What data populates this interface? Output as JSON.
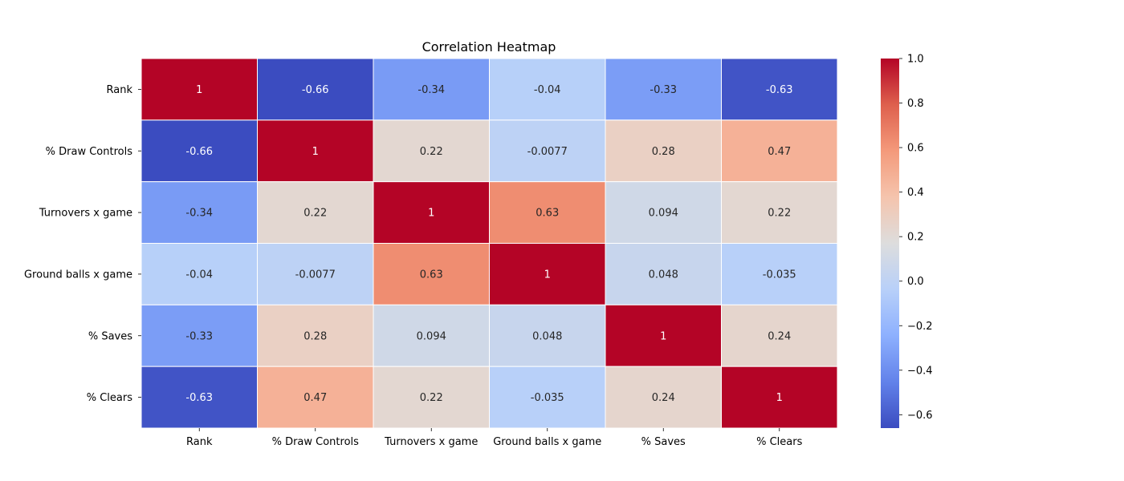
{
  "chart_data": {
    "type": "heatmap",
    "title": "Correlation Heatmap",
    "x_labels": [
      "Rank",
      "% Draw Controls",
      "Turnovers x game",
      "Ground balls x game",
      "% Saves",
      "% Clears"
    ],
    "y_labels": [
      "Rank",
      "% Draw Controls",
      "Turnovers x game",
      "Ground balls x game",
      "% Saves",
      "% Clears"
    ],
    "values": [
      [
        1,
        -0.66,
        -0.34,
        -0.04,
        -0.33,
        -0.63
      ],
      [
        -0.66,
        1,
        0.22,
        -0.0077,
        0.28,
        0.47
      ],
      [
        -0.34,
        0.22,
        1,
        0.63,
        0.094,
        0.22
      ],
      [
        -0.04,
        -0.0077,
        0.63,
        1,
        0.048,
        -0.035
      ],
      [
        -0.33,
        0.28,
        0.094,
        0.048,
        1,
        0.24
      ],
      [
        -0.63,
        0.47,
        0.22,
        -0.035,
        0.24,
        1
      ]
    ],
    "annotations": [
      [
        "1",
        "-0.66",
        "-0.34",
        "-0.04",
        "-0.33",
        "-0.63"
      ],
      [
        "-0.66",
        "1",
        "0.22",
        "-0.0077",
        "0.28",
        "0.47"
      ],
      [
        "-0.34",
        "0.22",
        "1",
        "0.63",
        "0.094",
        "0.22"
      ],
      [
        "-0.04",
        "-0.0077",
        "0.63",
        "1",
        "0.048",
        "-0.035"
      ],
      [
        "-0.33",
        "0.28",
        "0.094",
        "0.048",
        "1",
        "0.24"
      ],
      [
        "-0.63",
        "0.47",
        "0.22",
        "-0.035",
        "0.24",
        "1"
      ]
    ],
    "colormap": "coolwarm",
    "colorbar": {
      "vmin": -0.66,
      "vmax": 1.0,
      "ticks": [
        1.0,
        0.8,
        0.6,
        0.4,
        0.2,
        0.0,
        -0.2,
        -0.4,
        -0.6
      ],
      "tick_labels": [
        "1.0",
        "0.8",
        "0.6",
        "0.4",
        "0.2",
        "0.0",
        "−0.2",
        "−0.4",
        "−0.6"
      ]
    },
    "grid": true,
    "legend": "colorbar right"
  }
}
